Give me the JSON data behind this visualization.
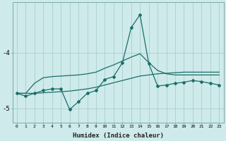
{
  "xlabel": "Humidex (Indice chaleur)",
  "bg_color": "#ceeaea",
  "grid_color": "#aacfcf",
  "line_color": "#1a6e6a",
  "x_values": [
    0,
    1,
    2,
    3,
    4,
    5,
    6,
    7,
    8,
    9,
    10,
    11,
    12,
    13,
    14,
    15,
    16,
    17,
    18,
    19,
    20,
    21,
    22,
    23
  ],
  "line_flat_y": [
    -4.73,
    -4.73,
    -4.73,
    -4.72,
    -4.71,
    -4.7,
    -4.69,
    -4.67,
    -4.65,
    -4.62,
    -4.58,
    -4.54,
    -4.5,
    -4.46,
    -4.42,
    -4.4,
    -4.38,
    -4.37,
    -4.36,
    -4.35,
    -4.35,
    -4.35,
    -4.35,
    -4.35
  ],
  "line_mid_y": [
    -4.73,
    -4.73,
    -4.55,
    -4.45,
    -4.43,
    -4.42,
    -4.41,
    -4.4,
    -4.38,
    -4.35,
    -4.28,
    -4.22,
    -4.15,
    -4.08,
    -4.02,
    -4.18,
    -4.32,
    -4.38,
    -4.4,
    -4.4,
    -4.4,
    -4.4,
    -4.4,
    -4.4
  ],
  "line_jagged_y": [
    -4.73,
    -4.78,
    -4.73,
    -4.68,
    -4.65,
    -4.65,
    -5.02,
    -4.88,
    -4.73,
    -4.68,
    -4.48,
    -4.43,
    -4.18,
    -3.55,
    -3.32,
    -4.2,
    -4.6,
    -4.58,
    -4.55,
    -4.53,
    -4.5,
    -4.52,
    -4.55,
    -4.58
  ],
  "ylim": [
    -5.25,
    -3.1
  ],
  "yticks": [
    -5.0,
    -4.0
  ],
  "ytick_labels": [
    "-5",
    "-4"
  ],
  "xlim": [
    -0.5,
    23.5
  ]
}
